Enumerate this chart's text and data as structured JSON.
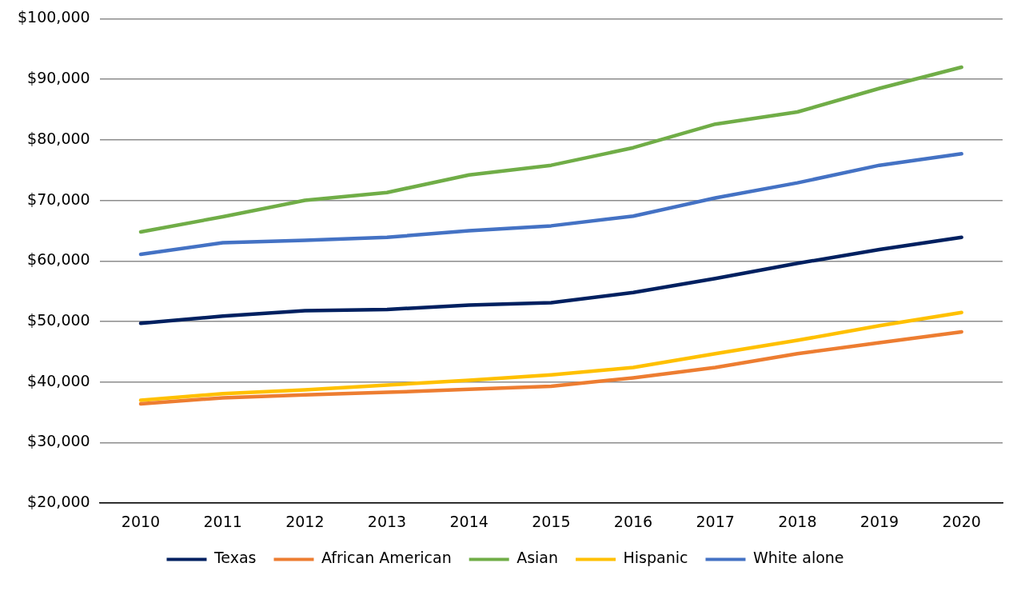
{
  "chart_data": {
    "type": "line",
    "categories": [
      "2010",
      "2011",
      "2012",
      "2013",
      "2014",
      "2015",
      "2016",
      "2017",
      "2018",
      "2019",
      "2020"
    ],
    "series": [
      {
        "name": "Texas",
        "color": "#002060",
        "values": [
          49700,
          50900,
          51800,
          52000,
          52700,
          53100,
          54800,
          57100,
          59600,
          61900,
          63900
        ]
      },
      {
        "name": "African American",
        "color": "#ed7d31",
        "values": [
          36400,
          37400,
          37900,
          38300,
          38800,
          39300,
          40700,
          42400,
          44700,
          46500,
          48300
        ]
      },
      {
        "name": "Asian",
        "color": "#70ad47",
        "values": [
          64800,
          67300,
          70000,
          71300,
          74200,
          75800,
          78700,
          82600,
          84600,
          88500,
          92000
        ]
      },
      {
        "name": "Hispanic",
        "color": "#ffc000",
        "values": [
          37000,
          38100,
          38700,
          39500,
          40300,
          41200,
          42400,
          44700,
          46900,
          49300,
          51500
        ]
      },
      {
        "name": "White alone",
        "color": "#4472c4",
        "values": [
          61100,
          63000,
          63400,
          63900,
          65000,
          65800,
          67400,
          70400,
          72900,
          75800,
          77700
        ]
      }
    ],
    "ylim": [
      20000,
      100000
    ],
    "yticks": [
      {
        "value": 20000,
        "label": "$20,000"
      },
      {
        "value": 30000,
        "label": "$30,000"
      },
      {
        "value": 40000,
        "label": "$40,000"
      },
      {
        "value": 50000,
        "label": "$50,000"
      },
      {
        "value": 60000,
        "label": "$60,000"
      },
      {
        "value": 70000,
        "label": "$70,000"
      },
      {
        "value": 80000,
        "label": "$80,000"
      },
      {
        "value": 90000,
        "label": "$90,000"
      },
      {
        "value": 100000,
        "label": "$100,000"
      }
    ],
    "grid": "y",
    "legend": "bottom",
    "marker": "none",
    "line_style": "solid"
  }
}
